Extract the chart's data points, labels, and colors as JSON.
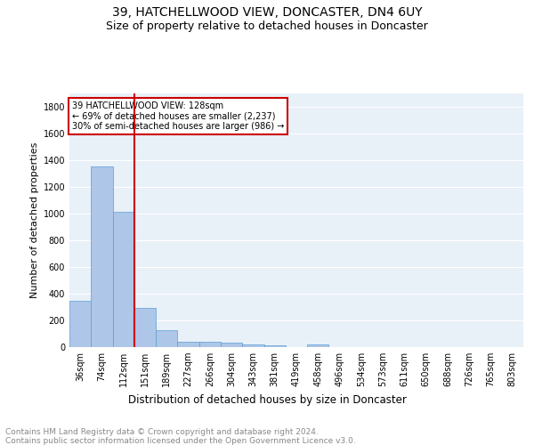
{
  "title": "39, HATCHELLWOOD VIEW, DONCASTER, DN4 6UY",
  "subtitle": "Size of property relative to detached houses in Doncaster",
  "xlabel": "Distribution of detached houses by size in Doncaster",
  "ylabel": "Number of detached properties",
  "bar_labels": [
    "36sqm",
    "74sqm",
    "112sqm",
    "151sqm",
    "189sqm",
    "227sqm",
    "266sqm",
    "304sqm",
    "343sqm",
    "381sqm",
    "419sqm",
    "458sqm",
    "496sqm",
    "534sqm",
    "573sqm",
    "611sqm",
    "650sqm",
    "688sqm",
    "726sqm",
    "765sqm",
    "803sqm"
  ],
  "bar_values": [
    350,
    1355,
    1015,
    295,
    130,
    40,
    38,
    32,
    20,
    15,
    0,
    20,
    0,
    0,
    0,
    0,
    0,
    0,
    0,
    0,
    0
  ],
  "bar_color": "#aec6e8",
  "bar_edge_color": "#5a9fd4",
  "background_color": "#e8f0f8",
  "grid_color": "#ffffff",
  "vline_x": 2.5,
  "vline_color": "#cc0000",
  "annotation_text": "39 HATCHELLWOOD VIEW: 128sqm\n← 69% of detached houses are smaller (2,237)\n30% of semi-detached houses are larger (986) →",
  "annotation_box_color": "#ffffff",
  "annotation_box_edge_color": "#cc0000",
  "ylim": [
    0,
    1900
  ],
  "yticks": [
    0,
    200,
    400,
    600,
    800,
    1000,
    1200,
    1400,
    1600,
    1800
  ],
  "footnote": "Contains HM Land Registry data © Crown copyright and database right 2024.\nContains public sector information licensed under the Open Government Licence v3.0.",
  "title_fontsize": 10,
  "subtitle_fontsize": 9,
  "xlabel_fontsize": 8.5,
  "ylabel_fontsize": 8,
  "tick_fontsize": 7,
  "annotation_fontsize": 7,
  "footnote_fontsize": 6.5
}
